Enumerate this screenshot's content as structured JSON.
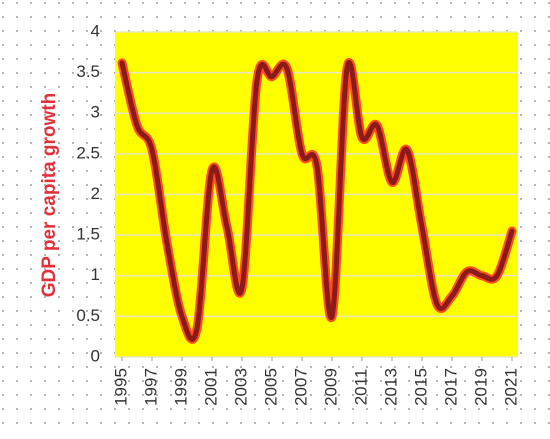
{
  "chart_data": {
    "type": "line",
    "y_label": "GDP per capita growth",
    "x": [
      1995,
      1996,
      1997,
      1998,
      1999,
      2000,
      2001,
      2002,
      2003,
      2004,
      2005,
      2006,
      2007,
      2008,
      2009,
      2010,
      2011,
      2012,
      2013,
      2014,
      2015,
      2016,
      2017,
      2018,
      2019,
      2020,
      2021
    ],
    "series": [
      {
        "name": "GDP per capita growth",
        "color": "#8b1a1a",
        "values": [
          3.62,
          2.85,
          2.55,
          1.4,
          0.5,
          0.35,
          2.3,
          1.6,
          0.85,
          3.4,
          3.45,
          3.55,
          2.5,
          2.35,
          0.5,
          3.55,
          2.7,
          2.85,
          2.15,
          2.55,
          1.6,
          0.65,
          0.75,
          1.05,
          1.0,
          1.0,
          1.55
        ]
      }
    ],
    "xlim": [
      1995,
      2021
    ],
    "xticks": [
      1995,
      1997,
      1999,
      2001,
      2003,
      2005,
      2007,
      2009,
      2011,
      2013,
      2015,
      2017,
      2019,
      2021
    ],
    "ylim": [
      0,
      4
    ],
    "yticks": [
      0,
      0.5,
      1,
      1.5,
      2,
      2.5,
      3,
      3.5,
      4
    ],
    "grid": true,
    "plot_background": "#ffff00"
  }
}
